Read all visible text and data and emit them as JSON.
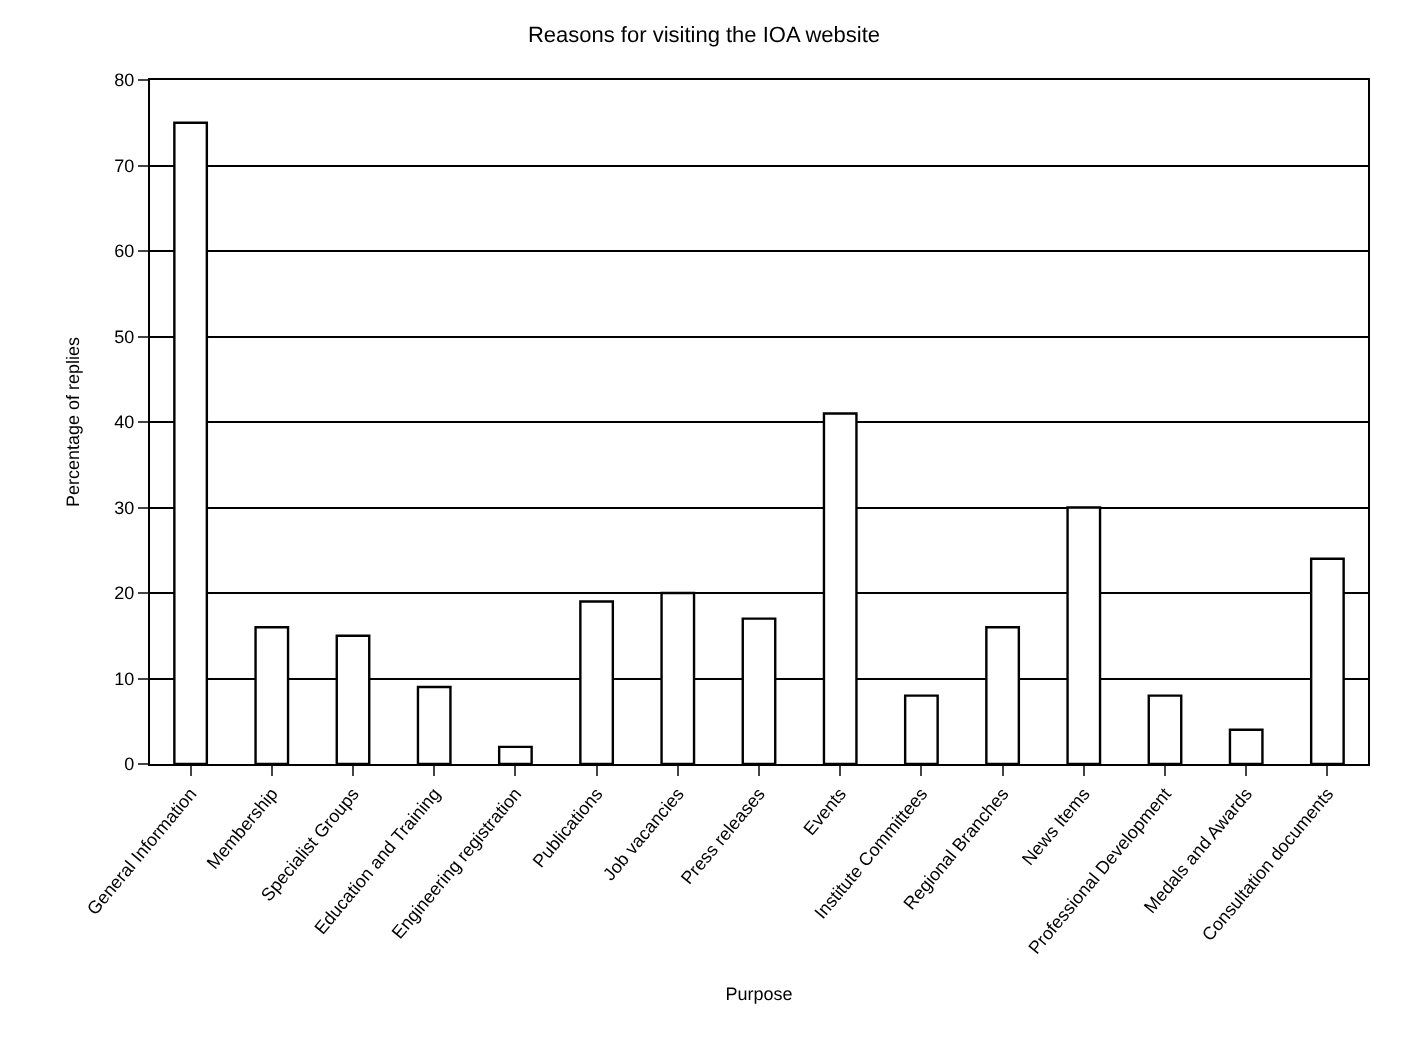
{
  "chart_data": {
    "type": "bar",
    "title": "Reasons for visiting the IOA website",
    "xlabel": "Purpose",
    "ylabel": "Percentage of replies",
    "categories": [
      "General Information",
      "Membership",
      "Specialist Groups",
      "Education and Training",
      "Engineering registration",
      "Publications",
      "Job vacancies",
      "Press releases",
      "Events",
      "Institute Committees",
      "Regional Branches",
      "News Items",
      "Professional Development",
      "Medals and Awards",
      "Consultation documents"
    ],
    "values": [
      75,
      16,
      15,
      9,
      2,
      19,
      20,
      17,
      41,
      8,
      16,
      30,
      8,
      4,
      24
    ],
    "color": "#ffffff",
    "ylim": [
      0,
      80
    ],
    "yticks": [
      0,
      10,
      20,
      30,
      40,
      50,
      60,
      70,
      80
    ],
    "grid": "y",
    "legend": false
  }
}
